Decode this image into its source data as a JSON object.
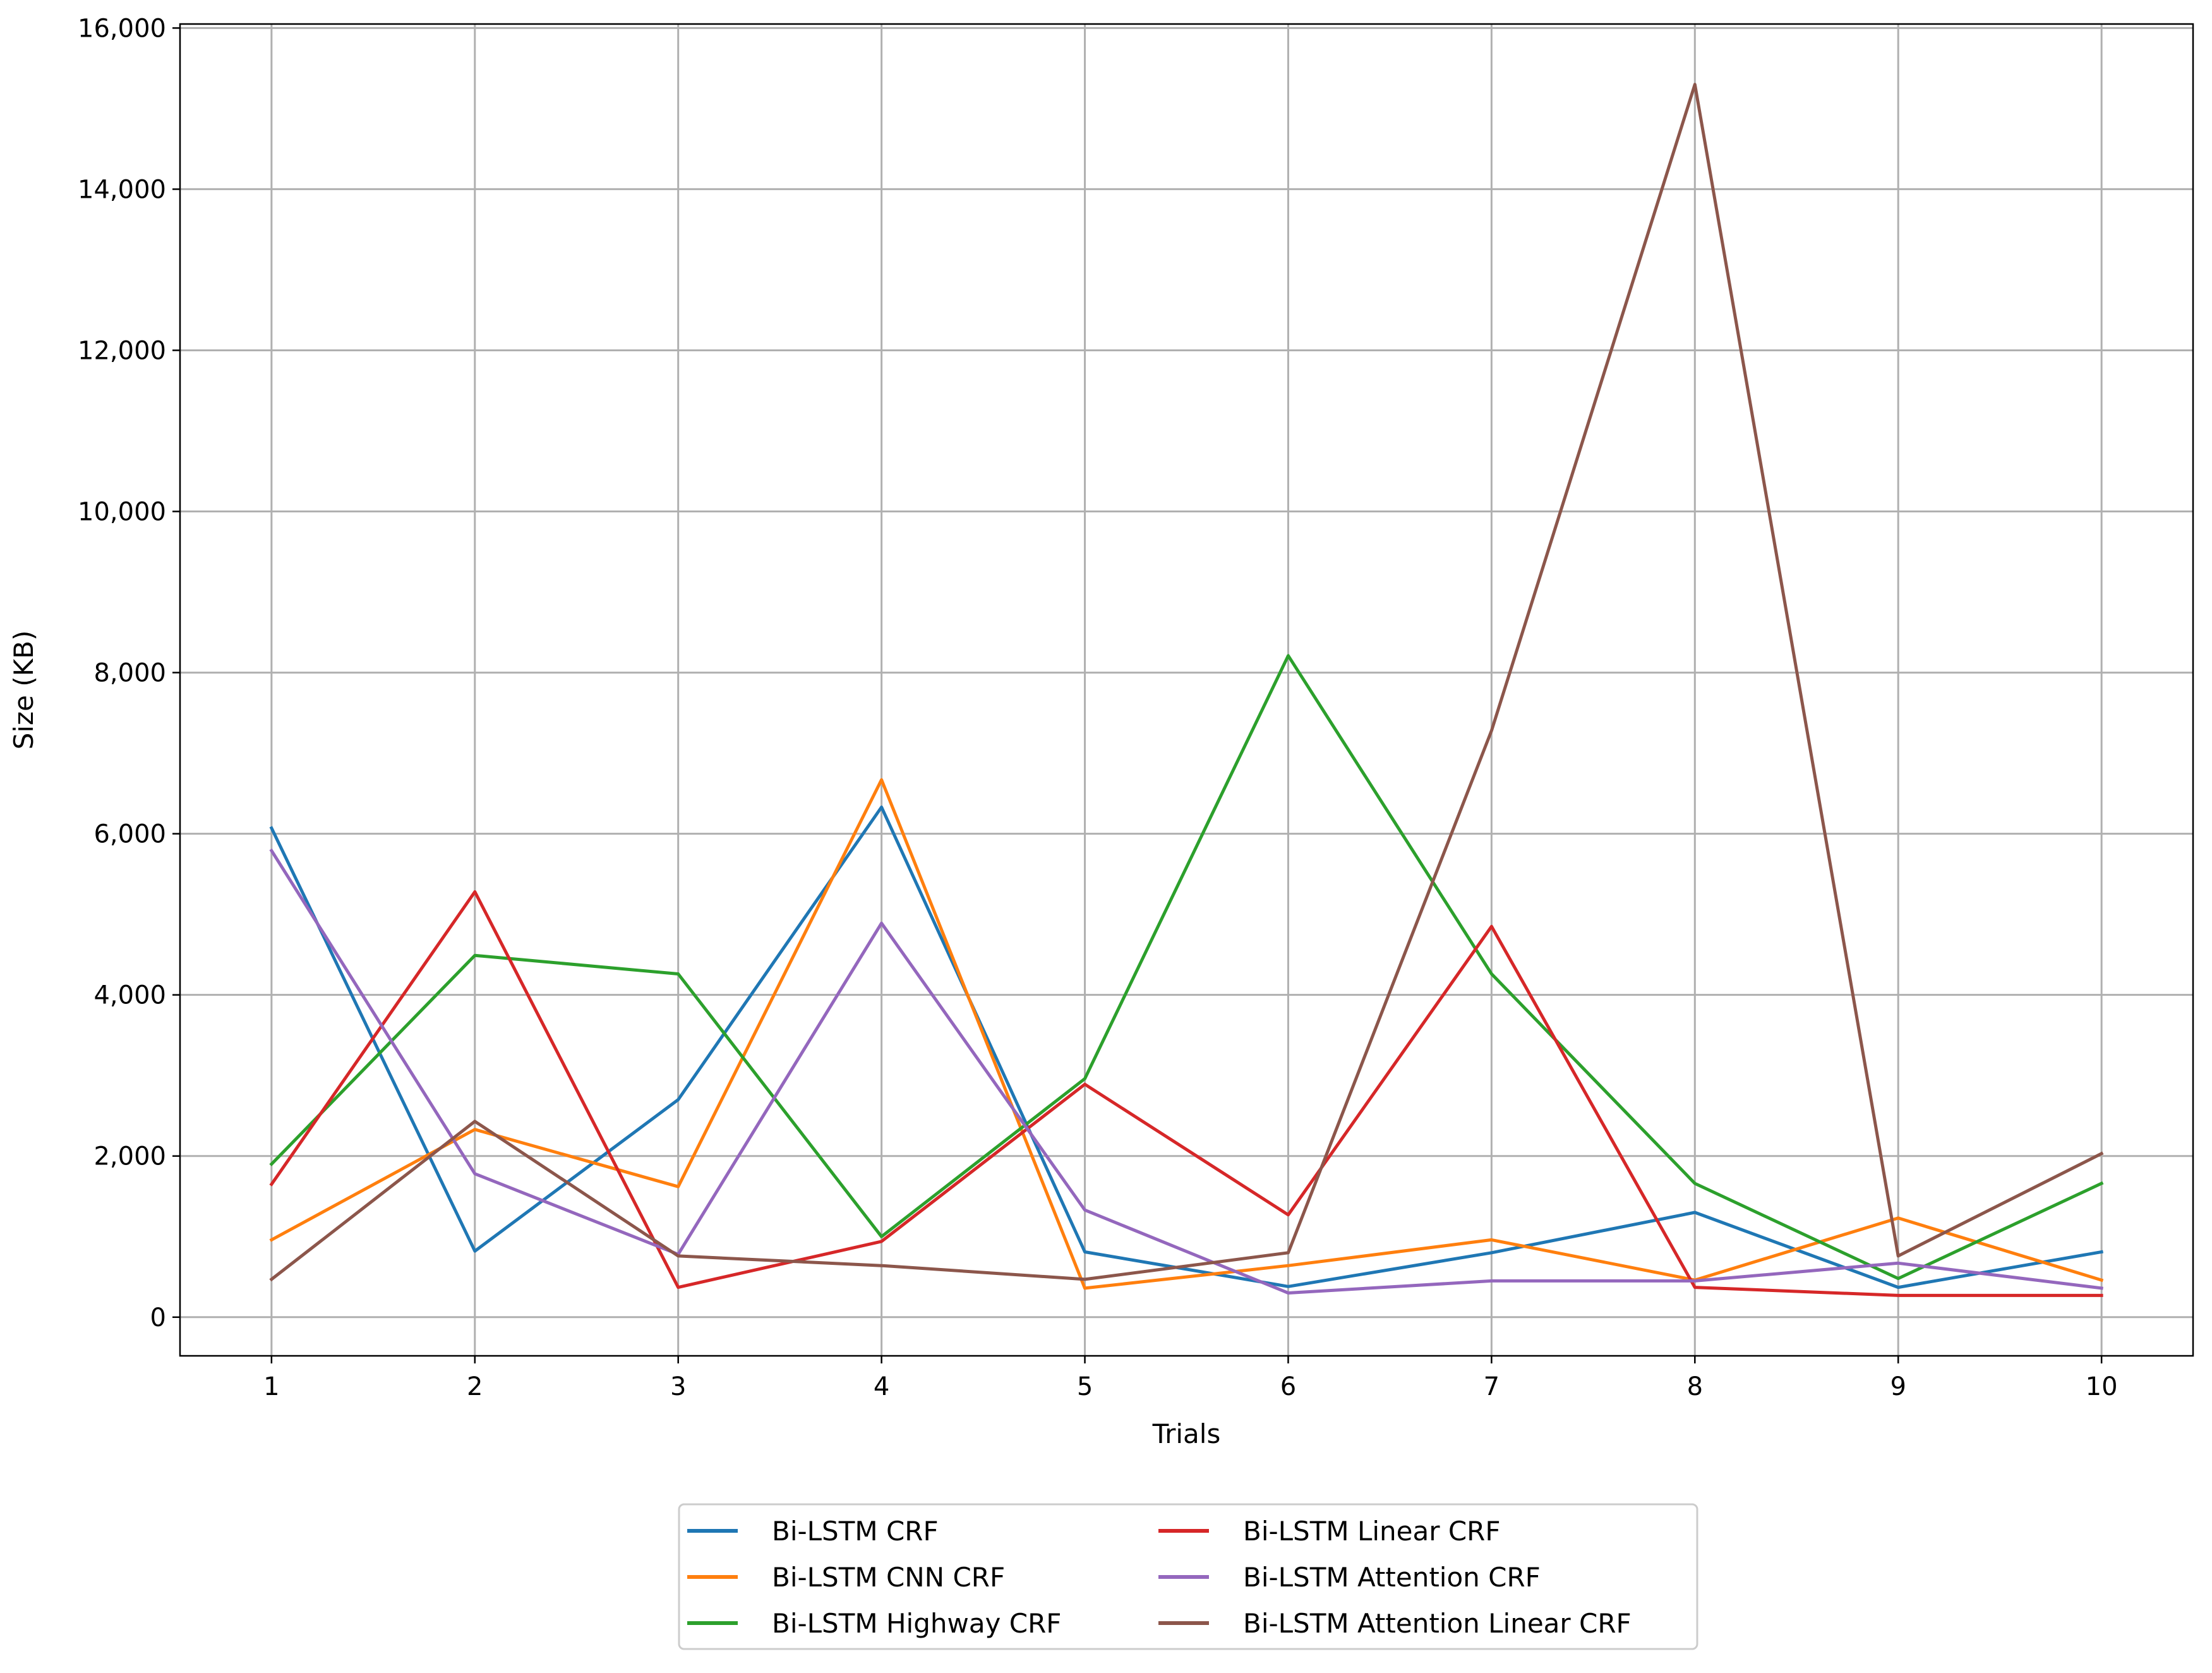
{
  "chart_data": {
    "type": "line",
    "title": "",
    "xlabel": "Trials",
    "ylabel": "Size (KB)",
    "x": [
      1,
      2,
      3,
      4,
      5,
      6,
      7,
      8,
      9,
      10
    ],
    "x_tick_labels": [
      "1",
      "2",
      "3",
      "4",
      "5",
      "6",
      "7",
      "8",
      "9",
      "10"
    ],
    "xlim": [
      0.55,
      10.45
    ],
    "ylim": [
      -480,
      16050
    ],
    "y_ticks": [
      0,
      2000,
      4000,
      6000,
      8000,
      10000,
      12000,
      14000,
      16000
    ],
    "y_tick_labels": [
      "0",
      "2,000",
      "4,000",
      "6,000",
      "8,000",
      "10,000",
      "12,000",
      "14,000",
      "16,000"
    ],
    "grid": true,
    "legend_position": "bottom-center, below axes",
    "series": [
      {
        "name": "Bi-LSTM CRF",
        "color": "#1f77b4",
        "values": [
          6070,
          820,
          2700,
          6330,
          810,
          380,
          800,
          1300,
          370,
          810
        ]
      },
      {
        "name": "Bi-LSTM CNN CRF",
        "color": "#ff7f0e",
        "values": [
          960,
          2330,
          1620,
          6670,
          360,
          640,
          960,
          460,
          1230,
          460
        ]
      },
      {
        "name": "Bi-LSTM Highway CRF",
        "color": "#2ca02c",
        "values": [
          1900,
          4490,
          4260,
          1000,
          2960,
          8210,
          4260,
          1660,
          480,
          1660
        ]
      },
      {
        "name": "Bi-LSTM Linear CRF",
        "color": "#d62728",
        "values": [
          1650,
          5280,
          370,
          940,
          2890,
          1270,
          4850,
          370,
          270,
          270
        ]
      },
      {
        "name": "Bi-LSTM Attention CRF",
        "color": "#9467bd",
        "values": [
          5790,
          1780,
          780,
          4890,
          1330,
          300,
          450,
          450,
          670,
          360
        ]
      },
      {
        "name": "Bi-LSTM Attention Linear CRF",
        "color": "#8c564b",
        "values": [
          470,
          2430,
          760,
          640,
          470,
          800,
          7280,
          15300,
          760,
          2030
        ]
      }
    ]
  }
}
